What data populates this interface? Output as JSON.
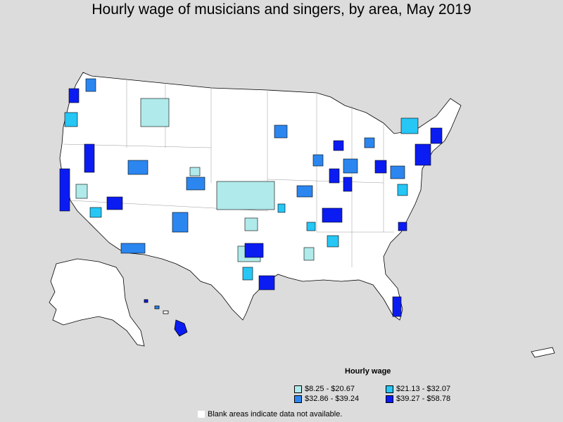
{
  "title": "Hourly wage of musicians and singers, by area, May 2019",
  "legend": {
    "title": "Hourly wage",
    "items": [
      {
        "label": "$8.25 - $20.67",
        "color": "#b0eaea"
      },
      {
        "label": "$21.13 - $32.07",
        "color": "#26c6f5"
      },
      {
        "label": "$32.86 - $39.24",
        "color": "#2b86f0"
      },
      {
        "label": "$39.27 - $58.78",
        "color": "#0b1cf2"
      }
    ]
  },
  "blank_note": "Blank areas indicate data not available."
}
